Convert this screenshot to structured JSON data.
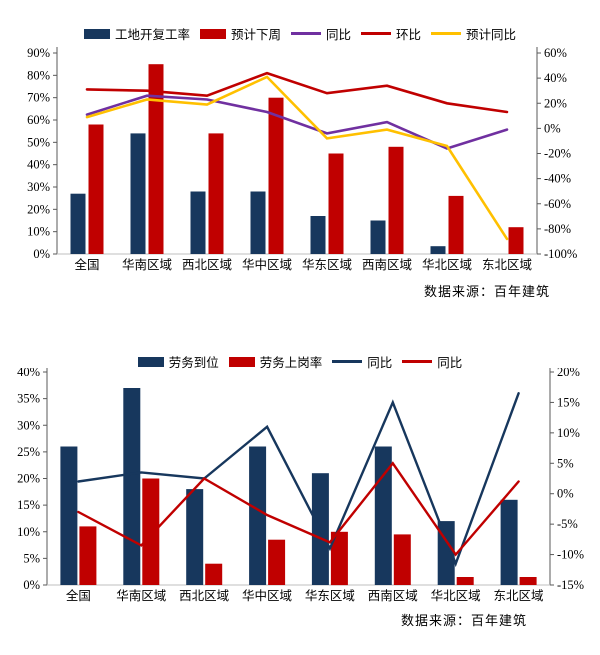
{
  "chart_data": [
    {
      "type": "bar+line combo, dual percent axes",
      "categories": [
        "全国",
        "华南区域",
        "西北区域",
        "华中区域",
        "华东区域",
        "西南区域",
        "华北区域",
        "东北区域"
      ],
      "left_axis": {
        "min": 0,
        "max": 90,
        "step": 10,
        "unit": "%"
      },
      "right_axis": {
        "min": -100,
        "max": 60,
        "step": 20,
        "unit": "%"
      },
      "bar_series": [
        {
          "name": "工地开复工率",
          "color": "#17375D",
          "axis": "left",
          "values": [
            27,
            54,
            28,
            28,
            17,
            15,
            3.5,
            0
          ]
        },
        {
          "name": "预计下周",
          "color": "#C00000",
          "axis": "left",
          "values": [
            58,
            85,
            54,
            70,
            45,
            48,
            26,
            12
          ]
        }
      ],
      "line_series": [
        {
          "name": "同比",
          "color": "#7030A0",
          "axis": "right",
          "values": [
            11,
            26,
            23,
            13,
            -4,
            5,
            -16,
            -1
          ]
        },
        {
          "name": "环比",
          "color": "#C00000",
          "axis": "right",
          "values": [
            31,
            30,
            26,
            44,
            28,
            34,
            20,
            13
          ]
        },
        {
          "name": "预计同比",
          "color": "#FFC000",
          "axis": "right",
          "values": [
            9,
            23,
            19,
            41,
            -8,
            -1,
            -14,
            -88
          ]
        }
      ],
      "grid": "off",
      "legend_position": "top-center",
      "source": "数据来源：百年建筑"
    },
    {
      "type": "bar+line combo, dual percent axes",
      "categories": [
        "全国",
        "华南区域",
        "西北区域",
        "华中区域",
        "华东区域",
        "西南区域",
        "华北区域",
        "东北区域"
      ],
      "left_axis": {
        "min": 0,
        "max": 40,
        "step": 5,
        "unit": "%"
      },
      "right_axis": {
        "min": -15,
        "max": 20,
        "step": 5,
        "unit": "%"
      },
      "bar_series": [
        {
          "name": "劳务到位",
          "color": "#17375D",
          "axis": "left",
          "values": [
            26,
            37,
            18,
            26,
            21,
            26,
            12,
            16
          ]
        },
        {
          "name": "劳务上岗率",
          "color": "#C00000",
          "axis": "left",
          "values": [
            11,
            20,
            4,
            8.5,
            10,
            9.5,
            1.5,
            1.5
          ]
        }
      ],
      "line_series": [
        {
          "name": "同比",
          "color": "#17375D",
          "axis": "right",
          "values": [
            2,
            3.5,
            2.5,
            11,
            -9,
            15,
            -11.5,
            16.5
          ]
        },
        {
          "name": "同比",
          "color": "#C00000",
          "axis": "right",
          "values": [
            -3,
            -8.5,
            2.5,
            -3.5,
            -8,
            5,
            -10,
            2
          ]
        }
      ],
      "grid": "off",
      "legend_position": "top-center",
      "source": "数据来源：百年建筑"
    }
  ]
}
